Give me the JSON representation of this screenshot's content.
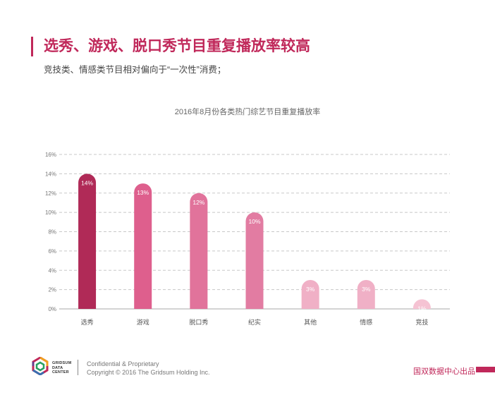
{
  "header": {
    "title": "选秀、游戏、脱口秀节目重复播放率较高",
    "subtitle": "竞技类、情感类节目相对偏向于“一次性”消费；"
  },
  "colors": {
    "accent": "#c0285a",
    "bars": [
      "#b02a57",
      "#de5f8d",
      "#e1739b",
      "#e27ca2",
      "#f0b0c6",
      "#f0b0c6",
      "#f5c3d3"
    ]
  },
  "chart_data": {
    "type": "bar",
    "title": "2016年8月份各类热门综艺节目重复播放率",
    "categories": [
      "选秀",
      "游戏",
      "脱口秀",
      "纪实",
      "其他",
      "情感",
      "竞技"
    ],
    "values": [
      14,
      13,
      12,
      10,
      3,
      3,
      1
    ],
    "data_labels": [
      "14%",
      "13%",
      "12%",
      "10%",
      "3%",
      "3%",
      "1%"
    ],
    "ylim": [
      0,
      16
    ],
    "yticks": [
      "0%",
      "2%",
      "4%",
      "6%",
      "8%",
      "10%",
      "12%",
      "14%",
      "16%"
    ],
    "grid": true,
    "xlabel": "",
    "ylabel": ""
  },
  "footer": {
    "logo_lines": [
      "GRIDSUM",
      "DATA",
      "CENTER"
    ],
    "line1": "Confidential & Proprietary",
    "line2": "Copyright © 2016 The Gridsum Holding Inc.",
    "brand": "国双数据中心出品"
  }
}
